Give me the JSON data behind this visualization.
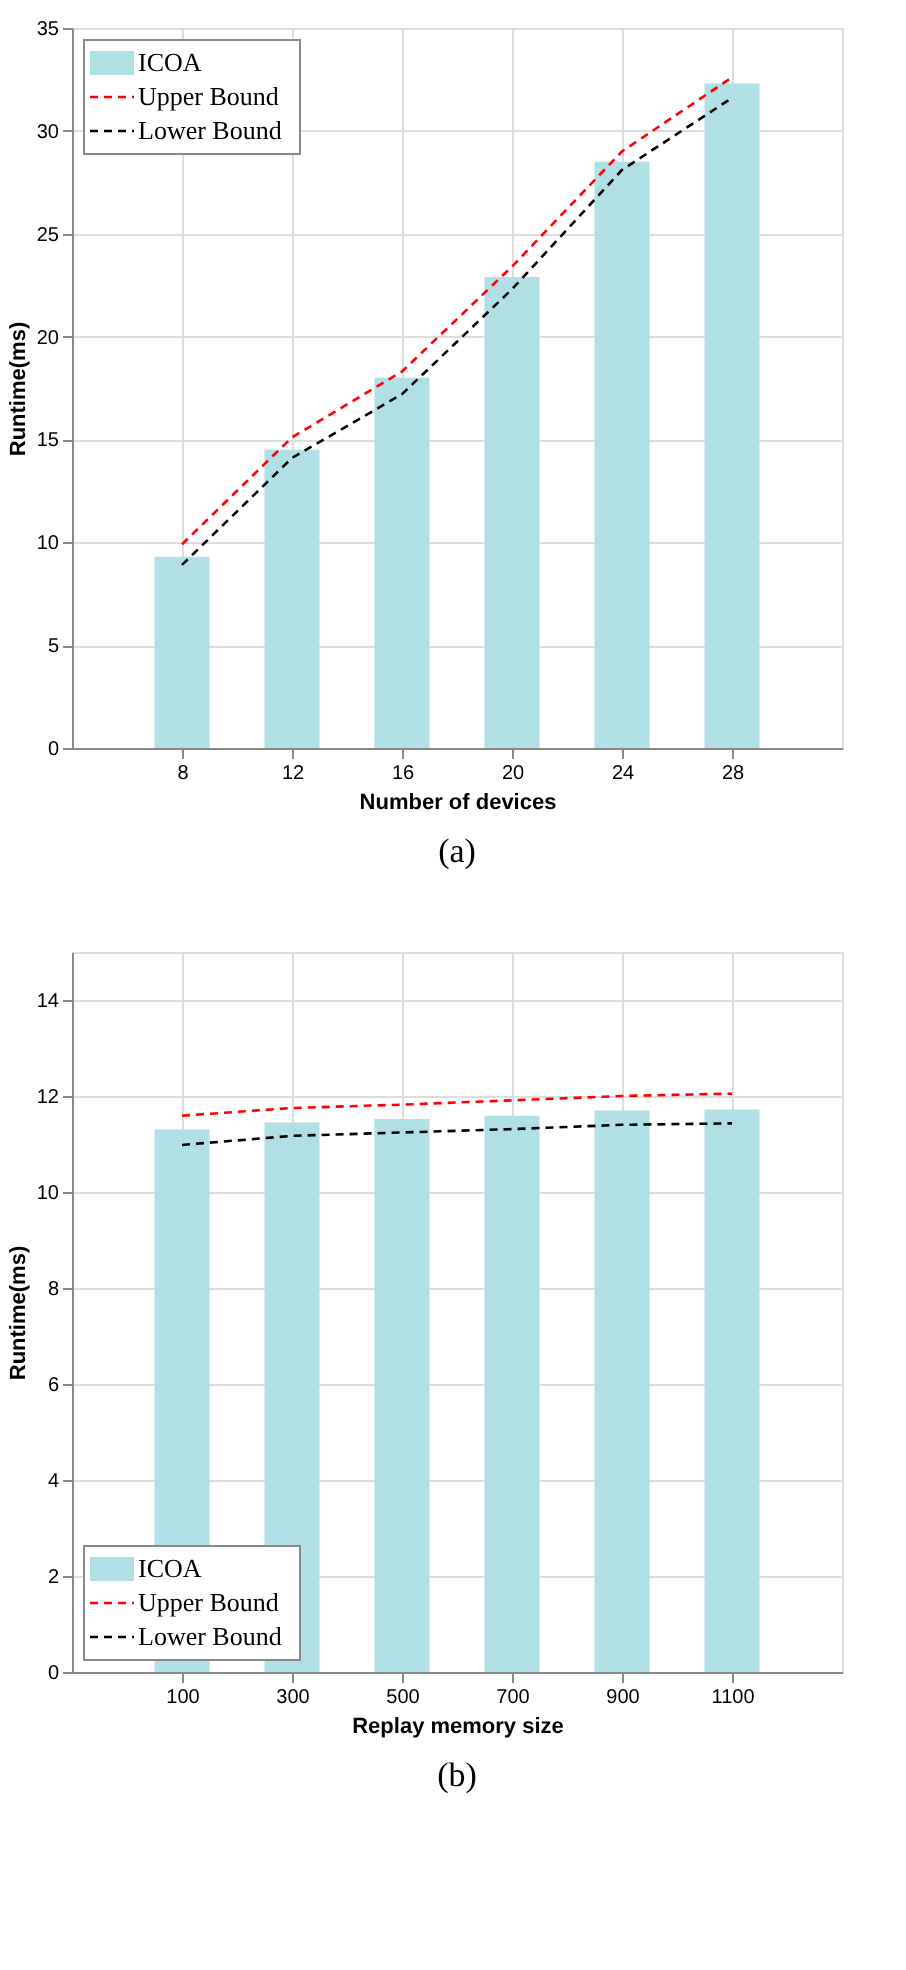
{
  "chart_data": [
    {
      "type": "bar",
      "xlabel": "Number of devices",
      "ylabel": "Runtime(ms)",
      "annotations": [
        "(a)"
      ],
      "categories": [
        "8",
        "12",
        "16",
        "20",
        "24",
        "28"
      ],
      "series": [
        {
          "name": "ICOA",
          "color": "#b0dfe5",
          "values": [
            9.3,
            14.5,
            18.0,
            22.9,
            28.5,
            32.3
          ]
        },
        {
          "name": "Upper Bound",
          "type": "line",
          "line_style": "dashed",
          "color": "#ff0000",
          "values": [
            9.9,
            15.1,
            18.3,
            23.4,
            29.0,
            32.6
          ]
        },
        {
          "name": "Lower Bound",
          "type": "line",
          "line_style": "dashed",
          "color": "#000000",
          "values": [
            8.9,
            14.1,
            17.2,
            22.3,
            28.1,
            31.6
          ]
        }
      ],
      "ylim": [
        0,
        35
      ],
      "yticks": [
        0,
        5,
        10,
        15,
        20,
        25,
        30,
        35
      ],
      "grid": true,
      "legend": "top left"
    },
    {
      "type": "bar",
      "xlabel": "Replay memory size",
      "ylabel": "Runtime(ms)",
      "annotations": [
        "(b)"
      ],
      "categories": [
        "100",
        "300",
        "500",
        "700",
        "900",
        "1100"
      ],
      "series": [
        {
          "name": "ICOA",
          "color": "#b0dfe5",
          "values": [
            11.3,
            11.45,
            11.52,
            11.59,
            11.7,
            11.72
          ]
        },
        {
          "name": "Upper Bound",
          "type": "line",
          "line_style": "dashed",
          "color": "#ff0000",
          "values": [
            11.59,
            11.75,
            11.82,
            11.91,
            12.0,
            12.05
          ]
        },
        {
          "name": "Lower Bound",
          "type": "line",
          "line_style": "dashed",
          "color": "#000000",
          "values": [
            10.98,
            11.17,
            11.24,
            11.31,
            11.4,
            11.43
          ]
        }
      ],
      "ylim": [
        0,
        15
      ],
      "yticks": [
        0,
        2,
        4,
        6,
        8,
        10,
        12,
        14
      ],
      "grid": true,
      "legend": "bottom left"
    }
  ]
}
